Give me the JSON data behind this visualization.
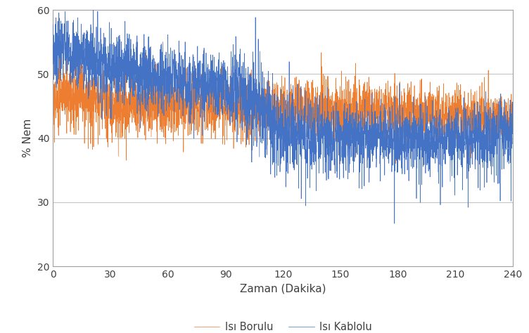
{
  "xlabel": "Zaman (Dakika)",
  "ylabel": "% Nem",
  "xlim": [
    0,
    240
  ],
  "ylim": [
    20,
    60
  ],
  "xticks": [
    0,
    30,
    60,
    90,
    120,
    150,
    180,
    210,
    240
  ],
  "yticks": [
    20,
    30,
    40,
    50,
    60
  ],
  "color_kablolu": "#4472C4",
  "color_borulu": "#ED7D31",
  "label_kablolu": "Isı Kablolu",
  "label_borulu": "Isı Borulu",
  "linewidth": 0.5,
  "legend_fontsize": 10.5,
  "axis_fontsize": 11,
  "tick_fontsize": 10
}
